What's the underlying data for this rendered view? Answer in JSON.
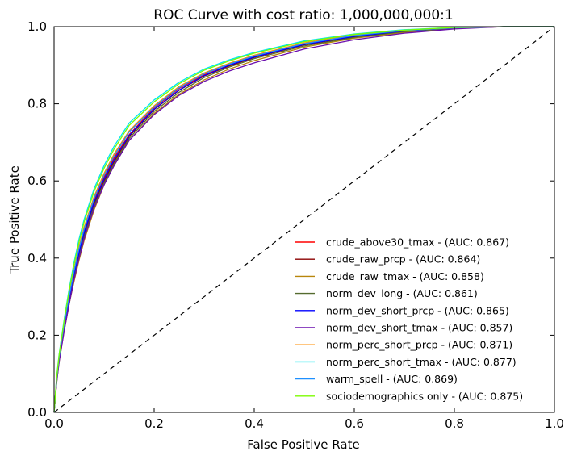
{
  "chart_data": {
    "type": "line",
    "title": "ROC Curve with cost ratio: 1,000,000,000:1",
    "xlabel": "False Positive Rate",
    "ylabel": "True Positive Rate",
    "xlim": [
      0.0,
      1.0
    ],
    "ylim": [
      0.0,
      1.0
    ],
    "xticks": [
      "0.0",
      "0.2",
      "0.4",
      "0.6",
      "0.8",
      "1.0"
    ],
    "yticks": [
      "0.0",
      "0.2",
      "0.4",
      "0.6",
      "0.8",
      "1.0"
    ],
    "grid": false,
    "legend_position": "lower-right",
    "diagonal": {
      "style": "dashed",
      "color": "#000000",
      "x": [
        0,
        1
      ],
      "y": [
        0,
        1
      ]
    },
    "x": [
      0,
      0.005,
      0.01,
      0.02,
      0.03,
      0.04,
      0.05,
      0.06,
      0.08,
      0.1,
      0.12,
      0.15,
      0.2,
      0.25,
      0.3,
      0.35,
      0.4,
      0.5,
      0.6,
      0.7,
      0.8,
      0.9,
      1.0
    ],
    "series": [
      {
        "name": "crude_above30_tmax - (AUC: 0.867)",
        "color": "#ff0000",
        "values": [
          0,
          0.08,
          0.14,
          0.22,
          0.3,
          0.36,
          0.42,
          0.47,
          0.55,
          0.61,
          0.66,
          0.72,
          0.79,
          0.84,
          0.875,
          0.9,
          0.922,
          0.955,
          0.976,
          0.989,
          0.997,
          1.0,
          1.0
        ]
      },
      {
        "name": "crude_raw_prcp - (AUC: 0.864)",
        "color": "#8b0000",
        "values": [
          0,
          0.08,
          0.14,
          0.22,
          0.29,
          0.355,
          0.41,
          0.46,
          0.54,
          0.6,
          0.65,
          0.715,
          0.785,
          0.835,
          0.872,
          0.898,
          0.92,
          0.953,
          0.974,
          0.988,
          0.996,
          1.0,
          1.0
        ]
      },
      {
        "name": "crude_raw_tmax - (AUC: 0.858)",
        "color": "#b8860b",
        "values": [
          0,
          0.075,
          0.13,
          0.21,
          0.28,
          0.34,
          0.395,
          0.445,
          0.525,
          0.59,
          0.64,
          0.705,
          0.775,
          0.825,
          0.862,
          0.89,
          0.912,
          0.947,
          0.97,
          0.985,
          0.995,
          1.0,
          1.0
        ]
      },
      {
        "name": "norm_dev_long - (AUC: 0.861)",
        "color": "#556b2f",
        "values": [
          0,
          0.078,
          0.135,
          0.215,
          0.285,
          0.35,
          0.405,
          0.455,
          0.535,
          0.595,
          0.645,
          0.71,
          0.78,
          0.83,
          0.868,
          0.895,
          0.917,
          0.95,
          0.972,
          0.987,
          0.996,
          1.0,
          1.0
        ]
      },
      {
        "name": "norm_dev_short_prcp - (AUC: 0.865)",
        "color": "#0000ff",
        "values": [
          0,
          0.08,
          0.14,
          0.225,
          0.295,
          0.36,
          0.415,
          0.465,
          0.545,
          0.605,
          0.655,
          0.718,
          0.786,
          0.836,
          0.873,
          0.9,
          0.921,
          0.954,
          0.975,
          0.989,
          0.997,
          1.0,
          1.0
        ]
      },
      {
        "name": "norm_dev_short_tmax - (AUC: 0.857)",
        "color": "#6a0dad",
        "values": [
          0,
          0.075,
          0.13,
          0.21,
          0.28,
          0.345,
          0.4,
          0.45,
          0.53,
          0.59,
          0.64,
          0.705,
          0.772,
          0.822,
          0.858,
          0.885,
          0.906,
          0.942,
          0.966,
          0.983,
          0.994,
          1.0,
          1.0
        ]
      },
      {
        "name": "norm_perc_short_prcp - (AUC: 0.871)",
        "color": "#ff8c00",
        "values": [
          0,
          0.085,
          0.145,
          0.23,
          0.305,
          0.37,
          0.43,
          0.48,
          0.56,
          0.62,
          0.67,
          0.73,
          0.795,
          0.845,
          0.88,
          0.905,
          0.926,
          0.958,
          0.978,
          0.99,
          0.997,
          1.0,
          1.0
        ]
      },
      {
        "name": "norm_perc_short_tmax - (AUC: 0.877)",
        "color": "#00e5ee",
        "values": [
          0,
          0.09,
          0.15,
          0.24,
          0.32,
          0.39,
          0.45,
          0.5,
          0.58,
          0.64,
          0.69,
          0.75,
          0.81,
          0.856,
          0.89,
          0.914,
          0.933,
          0.963,
          0.981,
          0.992,
          0.998,
          1.0,
          1.0
        ]
      },
      {
        "name": "warm_spell - (AUC: 0.869)",
        "color": "#1e90ff",
        "values": [
          0,
          0.083,
          0.143,
          0.228,
          0.3,
          0.367,
          0.425,
          0.475,
          0.555,
          0.615,
          0.665,
          0.727,
          0.792,
          0.842,
          0.878,
          0.903,
          0.924,
          0.956,
          0.977,
          0.99,
          0.997,
          1.0,
          1.0
        ]
      },
      {
        "name": "sociodemographics only - (AUC: 0.875)",
        "color": "#7cfc00",
        "values": [
          0,
          0.088,
          0.148,
          0.236,
          0.315,
          0.383,
          0.442,
          0.493,
          0.573,
          0.633,
          0.683,
          0.744,
          0.805,
          0.852,
          0.887,
          0.911,
          0.931,
          0.961,
          0.98,
          0.991,
          0.998,
          1.0,
          1.0
        ]
      }
    ]
  }
}
